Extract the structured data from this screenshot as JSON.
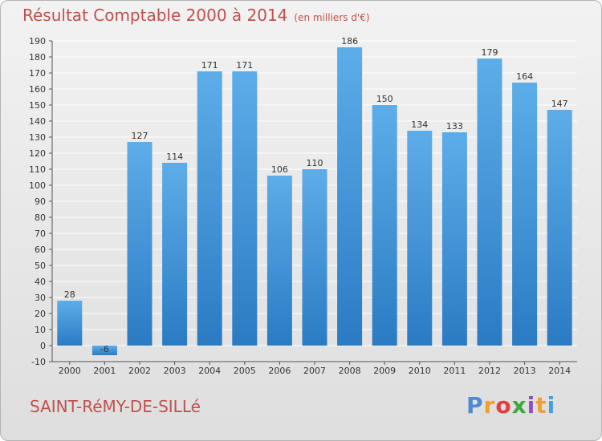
{
  "title": "Résultat Comptable 2000 à 2014",
  "subtitle": "(en milliers d'€)",
  "commune": "SAINT-RéMY-DE-SILLé",
  "logo": {
    "text": "Proxiti",
    "colors": [
      "#4e8ad0",
      "#f0a030",
      "#e04040",
      "#40a840",
      "#9050c0",
      "#f0a030",
      "#40a0e0"
    ]
  },
  "colors": {
    "title": "#c0504d",
    "bar_light": "#5dade9",
    "bar_dark": "#2b7bc4",
    "grid": "#ffffff"
  },
  "chart_data": {
    "type": "bar",
    "title": "Résultat Comptable 2000 à 2014",
    "subtitle": "(en milliers d'€)",
    "categories": [
      "2000",
      "2001",
      "2002",
      "2003",
      "2004",
      "2005",
      "2006",
      "2007",
      "2008",
      "2009",
      "2010",
      "2011",
      "2012",
      "2013",
      "2014"
    ],
    "values": [
      28,
      -6,
      127,
      114,
      171,
      171,
      106,
      110,
      186,
      150,
      134,
      133,
      179,
      164,
      147
    ],
    "ylim": [
      -10,
      190
    ],
    "yticks": [
      -10,
      0,
      10,
      20,
      30,
      40,
      50,
      60,
      70,
      80,
      90,
      100,
      110,
      120,
      130,
      140,
      150,
      160,
      170,
      180,
      190
    ],
    "grid": true,
    "xlabel": "",
    "ylabel": ""
  }
}
